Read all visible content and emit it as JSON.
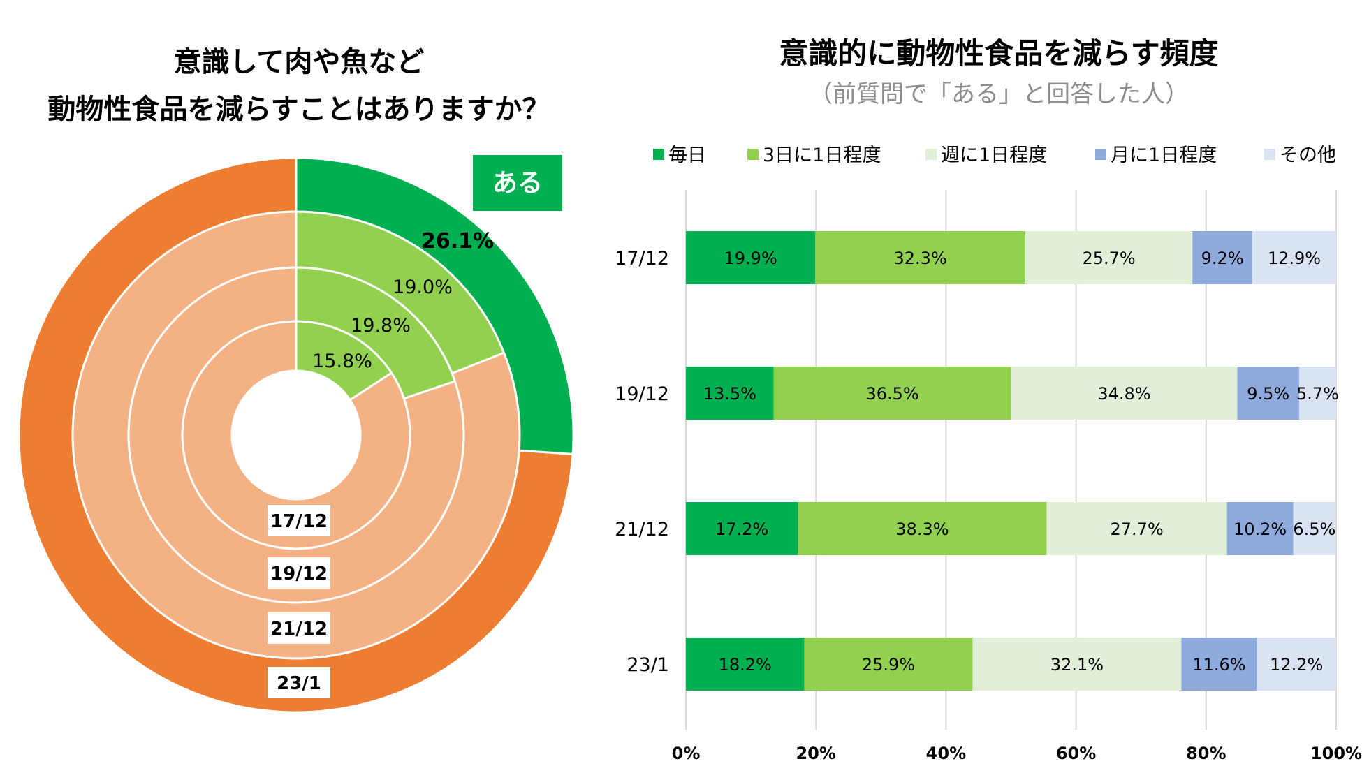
{
  "chart_data": [
    {
      "type": "pie",
      "subtype": "nested-donut",
      "title_lines": [
        "意識して肉や魚など",
        "動物性食品を減らすことはありますか？"
      ],
      "highlight_label": "ある",
      "rings": [
        {
          "name": "17/12",
          "aru": 15.8,
          "label": "15.8%"
        },
        {
          "name": "19/12",
          "aru": 19.8,
          "label": "19.8%"
        },
        {
          "name": "21/12",
          "aru": 19.0,
          "label": "19.0%"
        },
        {
          "name": "23/1",
          "aru": 26.1,
          "label": "26.1%"
        }
      ],
      "colors": {
        "aru_outer": "#00B050",
        "aru_inner": "#92D050",
        "rest_outer": "#ED7D31",
        "rest_inner": "#F4B183",
        "label_bg": "#00B050"
      }
    },
    {
      "type": "bar",
      "subtype": "stacked-horizontal-100",
      "title": "意識的に動物性食品を減らす頻度",
      "subtitle": "（前質問で「ある」と回答した人）",
      "categories": [
        "17/12",
        "19/12",
        "21/12",
        "23/1"
      ],
      "series": [
        {
          "name": "毎日",
          "color": "#00B050",
          "values": [
            19.9,
            13.5,
            17.2,
            18.2
          ]
        },
        {
          "name": "3日に1日程度",
          "color": "#92D050",
          "values": [
            32.3,
            36.5,
            38.3,
            25.9
          ]
        },
        {
          "name": "週に1日程度",
          "color": "#E2F0D9",
          "values": [
            25.7,
            34.8,
            27.7,
            32.1
          ]
        },
        {
          "name": "月に1日程度",
          "color": "#8FAADC",
          "values": [
            9.2,
            9.5,
            10.2,
            11.6
          ]
        },
        {
          "name": "その他",
          "color": "#DAE3F3",
          "values": [
            12.9,
            5.7,
            6.5,
            12.2
          ]
        }
      ],
      "xlim": [
        0,
        100
      ],
      "xticks": [
        "0%",
        "20%",
        "40%",
        "60%",
        "80%",
        "100%"
      ],
      "gridlines": true,
      "legend_position": "top"
    }
  ]
}
